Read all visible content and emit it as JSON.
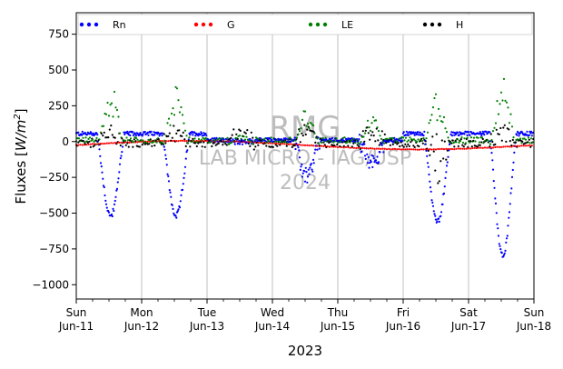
{
  "chart_data": {
    "type": "scatter",
    "title": "",
    "xlabel": "2023",
    "ylabel_prefix": "Fluxes [",
    "ylabel_unit": "W/m",
    "ylabel_exp": "2",
    "ylabel_suffix": "]",
    "ylim": [
      -1100,
      900
    ],
    "yticks": [
      -1000,
      -750,
      -500,
      -250,
      0,
      250,
      500,
      750
    ],
    "xlim": [
      0,
      7
    ],
    "xticks": [
      {
        "pos": 0,
        "line1": "Sun",
        "line2": "Jun-11"
      },
      {
        "pos": 1,
        "line1": "Mon",
        "line2": "Jun-12"
      },
      {
        "pos": 2,
        "line1": "Tue",
        "line2": "Jun-13"
      },
      {
        "pos": 3,
        "line1": "Wed",
        "line2": "Jun-14"
      },
      {
        "pos": 4,
        "line1": "Thu",
        "line2": "Jun-15"
      },
      {
        "pos": 5,
        "line1": "Fri",
        "line2": "Jun-16"
      },
      {
        "pos": 6,
        "line1": "Sat",
        "line2": "Jun-17"
      },
      {
        "pos": 7,
        "line1": "Sun",
        "line2": "Jun-18"
      }
    ],
    "grid": "x-only",
    "legend": {
      "placement": "top",
      "ncol": 4
    },
    "series": [
      {
        "name": "Rn",
        "color": "#0000ff",
        "days_peak": [
          -520,
          -520,
          0,
          -240,
          -150,
          -560,
          -800
        ]
      },
      {
        "name": "G",
        "color": "#ff0000"
      },
      {
        "name": "LE",
        "color": "#008000"
      },
      {
        "name": "H",
        "color": "#000000"
      }
    ],
    "watermark": [
      "RMG",
      "LAB MICRO - IAG/USP",
      "2024"
    ]
  }
}
